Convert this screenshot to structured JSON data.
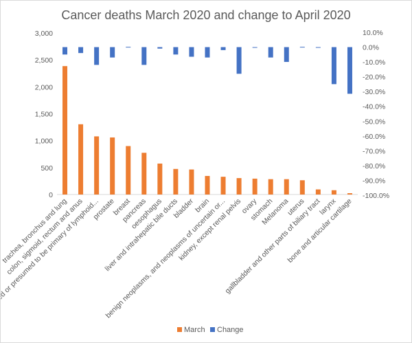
{
  "chart_data": {
    "type": "bar",
    "title": "Cancer deaths March 2020 and change to April 2020",
    "categories": [
      "trachea, bronchus and lung",
      "colon, sigmoid, rectum and anus",
      "stated or presumed to be primary of lymphoid...",
      "prostate",
      "breast",
      "pancreas",
      "oesophagus",
      "liver and intrahepatic bile ducts",
      "bladder",
      "brain",
      "benign neoplasms, and neoplasms of uncertain or...",
      "kidney, except renal pelvis",
      "ovary",
      "stomach",
      "Melanoma",
      "uterus",
      "gallbladder and other parts of biliary tract",
      "larynx",
      "bone and articular cartilage"
    ],
    "series": [
      {
        "name": "March",
        "axis": "primary",
        "color": "#ed7d31",
        "values": [
          2385,
          1305,
          1080,
          1060,
          900,
          775,
          575,
          475,
          465,
          345,
          330,
          305,
          295,
          285,
          285,
          265,
          95,
          80,
          25
        ]
      },
      {
        "name": "Change",
        "axis": "secondary",
        "color": "#4472c4",
        "values": [
          -0.05,
          -0.04,
          -0.12,
          -0.07,
          0.002,
          -0.12,
          -0.01,
          -0.05,
          -0.065,
          -0.07,
          -0.02,
          -0.18,
          0,
          -0.07,
          -0.1,
          0.002,
          0,
          -0.25,
          -0.315
        ]
      }
    ],
    "y_primary": {
      "min": 0,
      "max": 3000,
      "ticks": [
        "0",
        "500",
        "1,000",
        "1,500",
        "2,000",
        "2,500",
        "3,000"
      ]
    },
    "y_secondary": {
      "min": -1.0,
      "max": 0.1,
      "ticks": [
        "10.0%",
        "0.0%",
        "-10.0%",
        "-20.0%",
        "-30.0%",
        "-40.0%",
        "-50.0%",
        "-60.0%",
        "-70.0%",
        "-80.0%",
        "-90.0%",
        "-100.0%"
      ]
    },
    "grid": false,
    "legend": {
      "position": "bottom",
      "entries": [
        "March",
        "Change"
      ]
    }
  }
}
